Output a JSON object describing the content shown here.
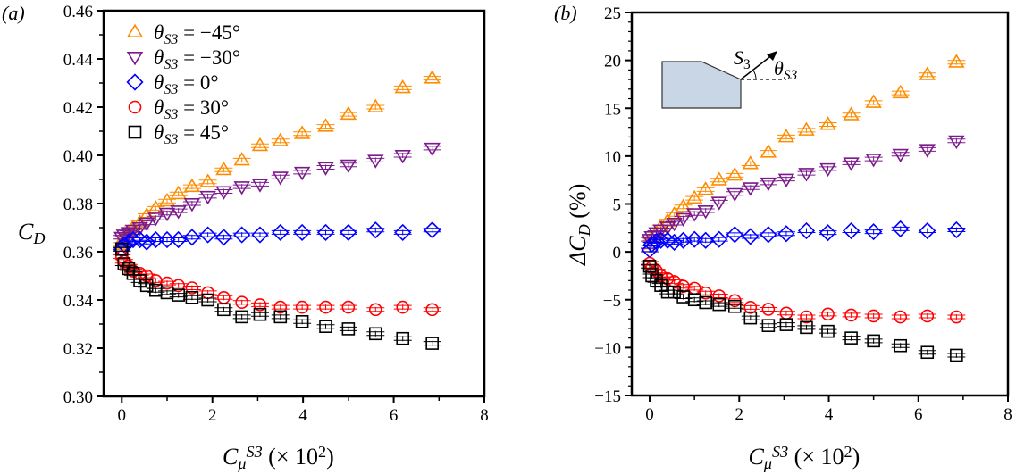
{
  "chart_data": [
    {
      "type": "scatter",
      "panel_label": "(a)",
      "ylabel": "C_D",
      "xlabel": "C_μ^{S3} (× 10²)",
      "xlim": [
        -0.4,
        8
      ],
      "ylim": [
        0.3,
        0.46
      ],
      "xticks": [
        0,
        2,
        4,
        6,
        8
      ],
      "yticks": [
        0.3,
        0.32,
        0.34,
        0.36,
        0.38,
        0.4,
        0.42,
        0.44,
        0.46
      ],
      "ytick_labels": [
        "0.30",
        "0.32",
        "0.34",
        "0.36",
        "0.38",
        "0.40",
        "0.42",
        "0.44",
        "0.46"
      ],
      "grid": false,
      "legend_placement": "top-left",
      "x": [
        0,
        0.05,
        0.15,
        0.25,
        0.4,
        0.55,
        0.75,
        1.0,
        1.25,
        1.55,
        1.9,
        2.25,
        2.65,
        3.05,
        3.5,
        3.98,
        4.5,
        5.0,
        5.6,
        6.2,
        6.85
      ],
      "series": [
        {
          "name": "θ_S3 = −45°",
          "marker": "triangle-up",
          "color": "#ff8c00",
          "values": [
            0.363,
            0.366,
            0.368,
            0.37,
            0.372,
            0.375,
            0.378,
            0.381,
            0.384,
            0.387,
            0.389,
            0.394,
            0.398,
            0.404,
            0.406,
            0.409,
            0.412,
            0.417,
            0.42,
            0.428,
            0.432
          ]
        },
        {
          "name": "θ_S3 = −30°",
          "marker": "triangle-down",
          "color": "#7b1a8c",
          "values": [
            0.366,
            0.367,
            0.368,
            0.369,
            0.37,
            0.372,
            0.374,
            0.376,
            0.377,
            0.38,
            0.383,
            0.385,
            0.387,
            0.388,
            0.391,
            0.393,
            0.395,
            0.396,
            0.398,
            0.4,
            0.403
          ]
        },
        {
          "name": "θ_S3 = 0°",
          "marker": "diamond",
          "color": "#0000ff",
          "values": [
            0.361,
            0.363,
            0.364,
            0.365,
            0.365,
            0.364,
            0.365,
            0.365,
            0.365,
            0.366,
            0.367,
            0.366,
            0.367,
            0.367,
            0.368,
            0.368,
            0.368,
            0.368,
            0.369,
            0.368,
            0.369
          ]
        },
        {
          "name": "θ_S3 = 30°",
          "marker": "circle",
          "color": "#ff0000",
          "values": [
            0.358,
            0.356,
            0.354,
            0.352,
            0.351,
            0.35,
            0.348,
            0.347,
            0.346,
            0.345,
            0.343,
            0.341,
            0.339,
            0.338,
            0.337,
            0.337,
            0.337,
            0.337,
            0.336,
            0.337,
            0.336
          ]
        },
        {
          "name": "θ_S3 = 45°",
          "marker": "square",
          "color": "#000000",
          "values": [
            0.361,
            0.355,
            0.353,
            0.351,
            0.348,
            0.346,
            0.344,
            0.343,
            0.342,
            0.341,
            0.34,
            0.336,
            0.333,
            0.334,
            0.333,
            0.331,
            0.329,
            0.328,
            0.326,
            0.324,
            0.322
          ]
        }
      ]
    },
    {
      "type": "scatter",
      "panel_label": "(b)",
      "ylabel": "ΔC_D (%)",
      "xlabel": "C_μ^{S3} (× 10²)",
      "xlim": [
        -0.4,
        8
      ],
      "ylim": [
        -15,
        25
      ],
      "xticks": [
        0,
        2,
        4,
        6,
        8
      ],
      "yticks": [
        -15,
        -10,
        -5,
        0,
        5,
        10,
        15,
        20,
        25
      ],
      "ytick_labels": [
        "−15",
        "−10",
        "−5",
        "0",
        "5",
        "10",
        "15",
        "20",
        "25"
      ],
      "grid": false,
      "inset": {
        "arrow_label": "S_3",
        "angle_label": "θ_S3",
        "fill": "#c8d6e6"
      },
      "x": [
        0,
        0.05,
        0.15,
        0.25,
        0.4,
        0.55,
        0.75,
        1.0,
        1.25,
        1.55,
        1.9,
        2.25,
        2.65,
        3.05,
        3.5,
        3.98,
        4.5,
        5.0,
        5.6,
        6.2,
        6.85
      ],
      "series": [
        {
          "marker": "triangle-up",
          "color": "#ff8c00",
          "values": [
            0.5,
            1.4,
            2,
            2.6,
            3.2,
            3.9,
            4.7,
            5.6,
            6.5,
            7.5,
            8,
            9.2,
            10.4,
            12,
            12.7,
            13.3,
            14.3,
            15.6,
            16.6,
            18.5,
            19.8
          ]
        },
        {
          "marker": "triangle-down",
          "color": "#7b1a8c",
          "values": [
            1.3,
            1.6,
            2,
            2.3,
            2.6,
            3,
            3.5,
            4,
            4.3,
            5.2,
            6.1,
            6.7,
            7.2,
            7.6,
            8.2,
            8.7,
            9.3,
            9.7,
            10.2,
            10.7,
            11.6
          ]
        },
        {
          "marker": "diamond",
          "color": "#0000ff",
          "values": [
            0.2,
            0.8,
            1.1,
            1.2,
            1.2,
            1,
            1.2,
            1.3,
            1.2,
            1.3,
            1.8,
            1.6,
            1.8,
            1.9,
            2.2,
            2,
            2.2,
            2.1,
            2.4,
            2.2,
            2.3
          ]
        },
        {
          "marker": "circle",
          "color": "#ff0000",
          "values": [
            -1.2,
            -1.6,
            -2,
            -2.5,
            -2.8,
            -3.1,
            -3.6,
            -3.8,
            -4.3,
            -4.6,
            -5.1,
            -5.8,
            -6,
            -6.4,
            -6.8,
            -6.5,
            -6.6,
            -6.7,
            -6.8,
            -6.7,
            -6.8
          ]
        },
        {
          "marker": "square",
          "color": "#000000",
          "values": [
            -1.5,
            -2.5,
            -3,
            -3.5,
            -4.2,
            -4.2,
            -4.7,
            -5,
            -5.3,
            -5.5,
            -5.7,
            -6.9,
            -7.7,
            -7.6,
            -7.9,
            -8.3,
            -9,
            -9.3,
            -9.8,
            -10.5,
            -10.8
          ]
        }
      ]
    }
  ]
}
